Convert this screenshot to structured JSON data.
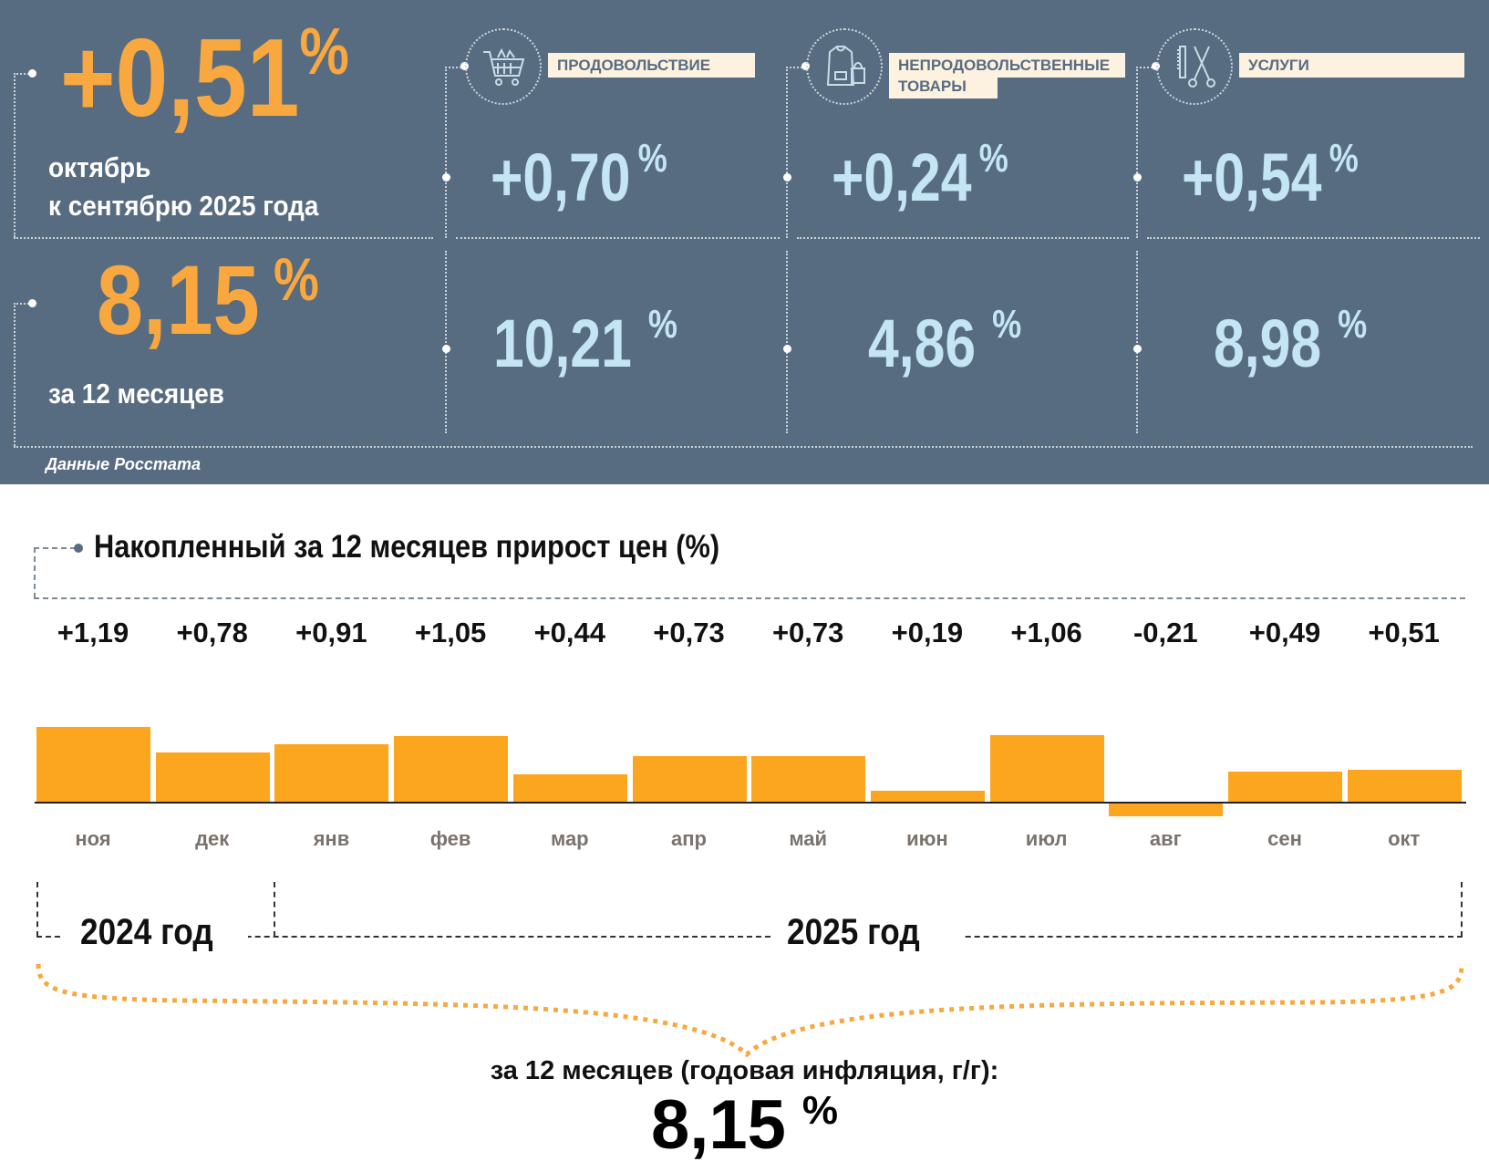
{
  "top": {
    "monthly": {
      "value": "+0,51",
      "unit": "%",
      "line1": "октябрь",
      "line2": "к сентябрю 2025 года"
    },
    "annual": {
      "value": "8,15",
      "unit": "%",
      "label": "за 12 месяцев"
    },
    "source": "Данные Росстата",
    "categories": [
      {
        "icon": "shopping-cart-icon",
        "label": "ПРОДОВОЛЬСТВИЕ",
        "label2": "",
        "monthly": "+0,70",
        "annual": "10,21",
        "unit": "%"
      },
      {
        "icon": "clothing-bag-icon",
        "label": "НЕПРОДОВОЛЬСТВЕННЫЕ",
        "label2": "ТОВАРЫ",
        "monthly": "+0,24",
        "annual": "4,86",
        "unit": "%"
      },
      {
        "icon": "comb-scissors-icon",
        "label": "УСЛУГИ",
        "label2": "",
        "monthly": "+0,54",
        "annual": "8,98",
        "unit": "%"
      }
    ]
  },
  "chart_data": {
    "type": "bar",
    "title": "Накопленный за 12 месяцев прирост цен (%)",
    "categories": [
      "ноя",
      "дек",
      "янв",
      "фев",
      "мар",
      "апр",
      "май",
      "июн",
      "июл",
      "авг",
      "сен",
      "окт"
    ],
    "values": [
      1.19,
      0.78,
      0.91,
      1.05,
      0.44,
      0.73,
      0.73,
      0.19,
      1.06,
      -0.21,
      0.49,
      0.51
    ],
    "labels": [
      "+1,19",
      "+0,78",
      "+0,91",
      "+1,05",
      "+0,44",
      "+0,73",
      "+0,73",
      "+0,19",
      "+1,06",
      "-0,21",
      "+0,49",
      "+0,51"
    ],
    "bar_color": "#fca61f",
    "year_groups": [
      "2024 год",
      "2025 год"
    ],
    "summary_label": "за 12 месяцев (годовая инфляция, г/г):",
    "summary_value": "8,15",
    "summary_unit": "%"
  }
}
